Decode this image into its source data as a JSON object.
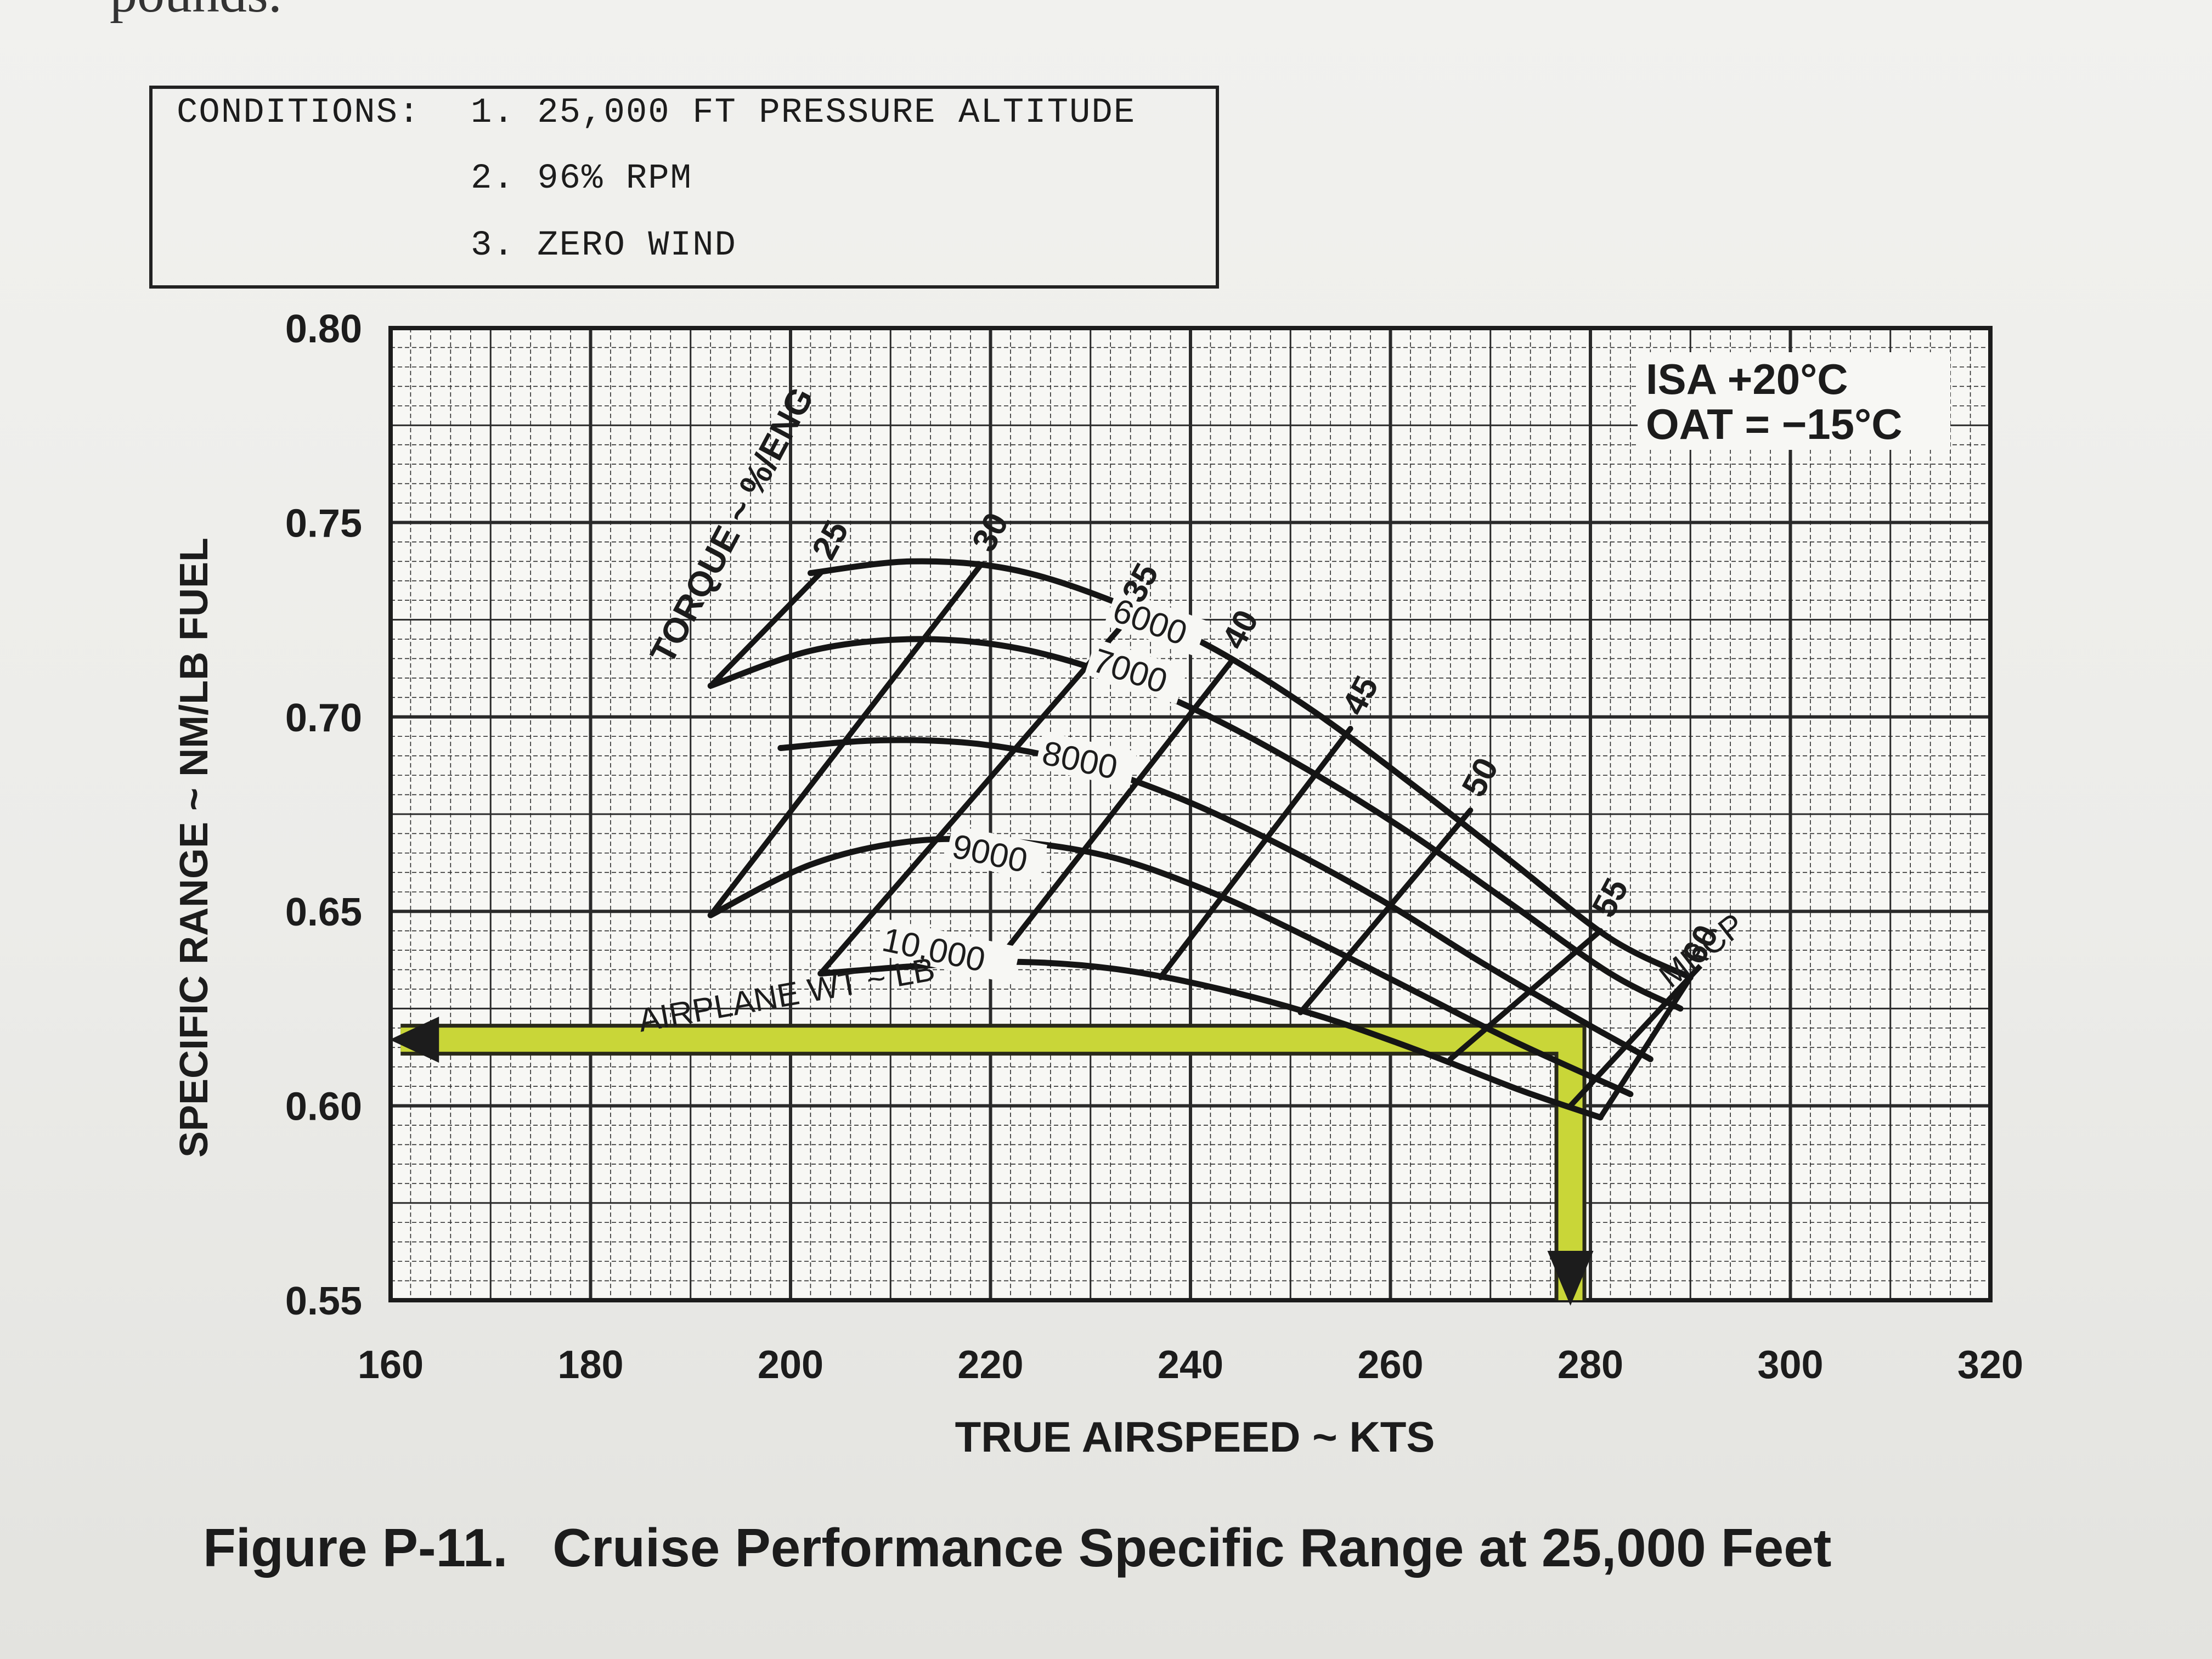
{
  "page_fragment": "pounds.",
  "conditions": {
    "heading": "CONDITIONS:",
    "items": [
      "1. 25,000 FT PRESSURE ALTITUDE",
      "2. 96% RPM",
      "3. ZERO WIND"
    ]
  },
  "caption": "Figure P-11.   Cruise Performance Specific Range at 25,000 Feet",
  "chart_data": {
    "type": "line",
    "title": "",
    "xlabel": "TRUE AIRSPEED ~ KTS",
    "ylabel": "SPECIFIC RANGE ~ NM/LB FUEL",
    "xlim": [
      160,
      320
    ],
    "ylim": [
      0.55,
      0.8
    ],
    "x_ticks": [
      "160",
      "180",
      "200",
      "220",
      "240",
      "260",
      "280",
      "300",
      "320"
    ],
    "y_ticks": [
      "0.55",
      "0.60",
      "0.65",
      "0.70",
      "0.75",
      "0.80"
    ],
    "grid": true,
    "atmosphere": [
      "ISA    +20°C",
      "OAT = −15°C"
    ],
    "weight_family_label": "AIRPLANE WT ~ LB",
    "torque_family_label": "TORQUE ~ %/ENG",
    "mrcp_label": "MRCP",
    "weight_series": [
      {
        "name": "6000",
        "points": [
          [
            202,
            0.737
          ],
          [
            212,
            0.74
          ],
          [
            222,
            0.738
          ],
          [
            232,
            0.73
          ],
          [
            242,
            0.718
          ],
          [
            252,
            0.702
          ],
          [
            262,
            0.683
          ],
          [
            272,
            0.663
          ],
          [
            282,
            0.643
          ],
          [
            290,
            0.633
          ]
        ]
      },
      {
        "name": "7000",
        "points": [
          [
            192,
            0.708
          ],
          [
            202,
            0.717
          ],
          [
            212,
            0.72
          ],
          [
            222,
            0.718
          ],
          [
            232,
            0.711
          ],
          [
            242,
            0.7
          ],
          [
            252,
            0.686
          ],
          [
            262,
            0.67
          ],
          [
            272,
            0.652
          ],
          [
            282,
            0.634
          ],
          [
            289,
            0.625
          ]
        ]
      },
      {
        "name": "8000",
        "points": [
          [
            199,
            0.692
          ],
          [
            209,
            0.694
          ],
          [
            219,
            0.693
          ],
          [
            229,
            0.688
          ],
          [
            239,
            0.679
          ],
          [
            249,
            0.667
          ],
          [
            259,
            0.653
          ],
          [
            269,
            0.637
          ],
          [
            279,
            0.622
          ],
          [
            286,
            0.612
          ]
        ]
      },
      {
        "name": "9000",
        "points": [
          [
            192,
            0.649
          ],
          [
            202,
            0.662
          ],
          [
            212,
            0.668
          ],
          [
            222,
            0.668
          ],
          [
            232,
            0.664
          ],
          [
            242,
            0.655
          ],
          [
            252,
            0.643
          ],
          [
            262,
            0.63
          ],
          [
            272,
            0.617
          ],
          [
            284,
            0.603
          ]
        ]
      },
      {
        "name": "10,000",
        "points": [
          [
            203,
            0.634
          ],
          [
            213,
            0.636
          ],
          [
            223,
            0.637
          ],
          [
            233,
            0.635
          ],
          [
            243,
            0.63
          ],
          [
            253,
            0.623
          ],
          [
            263,
            0.614
          ],
          [
            273,
            0.604
          ],
          [
            281,
            0.597
          ]
        ]
      }
    ],
    "torque_series": [
      {
        "name": "25",
        "points": [
          [
            203,
            0.737
          ],
          [
            192,
            0.708
          ]
        ]
      },
      {
        "name": "30",
        "points": [
          [
            219,
            0.739
          ],
          [
            192,
            0.649
          ]
        ]
      },
      {
        "name": "35",
        "points": [
          [
            234,
            0.726
          ],
          [
            203,
            0.634
          ]
        ]
      },
      {
        "name": "40",
        "points": [
          [
            244,
            0.714
          ],
          [
            220,
            0.635
          ]
        ]
      },
      {
        "name": "45",
        "points": [
          [
            256,
            0.697
          ],
          [
            237,
            0.633
          ]
        ]
      },
      {
        "name": "50",
        "points": [
          [
            268,
            0.676
          ],
          [
            251,
            0.624
          ]
        ]
      },
      {
        "name": "55",
        "points": [
          [
            281,
            0.645
          ],
          [
            266,
            0.612
          ]
        ]
      },
      {
        "name": "60",
        "points": [
          [
            290,
            0.633
          ],
          [
            281,
            0.597
          ]
        ]
      }
    ],
    "example_path": {
      "color": "#c9d638",
      "points": [
        [
          161,
          0.617
        ],
        [
          278,
          0.617
        ],
        [
          278,
          0.607
        ],
        [
          278,
          0.55
        ]
      ]
    }
  }
}
